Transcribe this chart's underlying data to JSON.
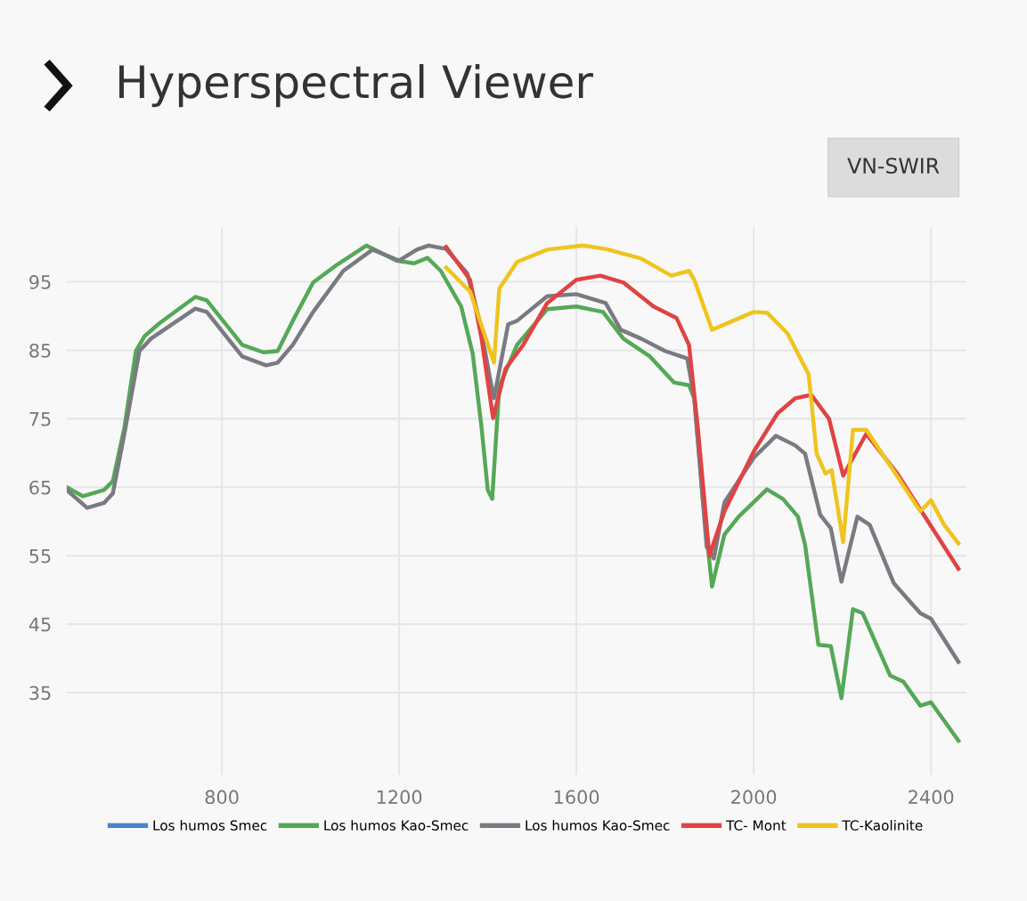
{
  "chart_data": {
    "type": "line",
    "title": "Hyperspectral Viewer",
    "annotations": [
      "VN-SWIR"
    ],
    "xlim": [
      450,
      2480
    ],
    "ylim": [
      23,
      103
    ],
    "xticks": [
      800,
      1200,
      1600,
      2000,
      2400
    ],
    "yticks": [
      35,
      45,
      55,
      65,
      75,
      85,
      95
    ],
    "grid": true,
    "legend": "bottom",
    "marker": "none",
    "line_style": "solid",
    "series": [
      {
        "name": "Los humos Smec",
        "color": "#4a86c5"
      },
      {
        "name": "Los humos Kao-Smec",
        "color": "#55a857",
        "x": [
          450,
          486,
          534,
          554,
          580,
          606,
          626,
          660,
          740,
          766,
          846,
          894,
          926,
          960,
          1006,
          1060,
          1126,
          1154,
          1194,
          1234,
          1264,
          1294,
          1340,
          1366,
          1386,
          1400,
          1410,
          1426,
          1466,
          1534,
          1600,
          1660,
          1706,
          1766,
          1820,
          1854,
          1866,
          1886,
          1906,
          1934,
          1966,
          2030,
          2066,
          2100,
          2116,
          2146,
          2174,
          2198,
          2224,
          2246,
          2308,
          2338,
          2376,
          2400,
          2462
        ],
        "values": [
          65.0,
          63.7,
          64.6,
          65.9,
          73.7,
          84.9,
          87.1,
          89.0,
          92.8,
          92.3,
          85.8,
          84.7,
          84.9,
          89.3,
          94.9,
          97.5,
          100.3,
          99.4,
          98.1,
          97.7,
          98.5,
          96.6,
          91.4,
          84.5,
          73.7,
          64.6,
          63.3,
          79.7,
          85.8,
          91.0,
          91.4,
          90.6,
          86.7,
          84.1,
          80.3,
          79.9,
          78.0,
          62.8,
          50.5,
          58.1,
          60.7,
          64.7,
          63.3,
          60.7,
          56.6,
          42.0,
          41.8,
          34.2,
          47.2,
          46.6,
          37.5,
          36.6,
          33.1,
          33.6,
          28.0
        ]
      },
      {
        "name": "Los humos Kao-Smec",
        "color": "#7a7a82",
        "x": [
          450,
          496,
          534,
          554,
          580,
          614,
          640,
          740,
          766,
          846,
          900,
          926,
          960,
          1006,
          1074,
          1140,
          1200,
          1240,
          1266,
          1306,
          1354,
          1380,
          1406,
          1414,
          1446,
          1466,
          1534,
          1600,
          1666,
          1700,
          1746,
          1800,
          1850,
          1866,
          1894,
          1910,
          1934,
          2000,
          2050,
          2094,
          2116,
          2150,
          2174,
          2198,
          2234,
          2262,
          2316,
          2376,
          2400,
          2462
        ],
        "values": [
          64.6,
          62.0,
          62.7,
          64.1,
          72.8,
          84.9,
          86.7,
          91.1,
          90.6,
          84.1,
          82.8,
          83.2,
          85.8,
          90.6,
          96.6,
          99.7,
          98.1,
          99.7,
          100.3,
          99.8,
          96.2,
          89.7,
          80.6,
          78.0,
          88.8,
          89.3,
          92.9,
          93.2,
          91.9,
          88.0,
          86.7,
          84.9,
          83.8,
          78.0,
          56.3,
          54.6,
          62.8,
          69.3,
          72.5,
          71.1,
          69.9,
          61.0,
          59.0,
          51.2,
          60.7,
          59.5,
          51.0,
          46.6,
          45.8,
          39.5
        ]
      },
      {
        "name": "TC- Mont",
        "color": "#e04343",
        "x": [
          1306,
          1360,
          1386,
          1412,
          1440,
          1480,
          1534,
          1600,
          1654,
          1706,
          1774,
          1826,
          1854,
          1874,
          1900,
          1934,
          2000,
          2054,
          2094,
          2130,
          2170,
          2202,
          2254,
          2324,
          2462
        ],
        "values": [
          100.1,
          95.3,
          86.7,
          75.1,
          82.3,
          85.8,
          91.9,
          95.3,
          95.9,
          94.9,
          91.4,
          89.7,
          85.8,
          73.7,
          55.0,
          61.5,
          70.2,
          75.8,
          78.0,
          78.5,
          75.0,
          66.7,
          72.8,
          67.0,
          53.1
        ]
      },
      {
        "name": "TC-Kaolinite",
        "color": "#f0c41e",
        "x": [
          1306,
          1360,
          1414,
          1426,
          1466,
          1534,
          1614,
          1666,
          1746,
          1814,
          1854,
          1866,
          1906,
          2000,
          2030,
          2076,
          2124,
          2142,
          2162,
          2176,
          2202,
          2224,
          2254,
          2330,
          2376,
          2400,
          2430,
          2462
        ],
        "values": [
          97.1,
          93.6,
          83.2,
          94.0,
          97.9,
          99.7,
          100.3,
          99.8,
          98.4,
          95.9,
          96.6,
          95.3,
          88.0,
          90.6,
          90.5,
          87.5,
          81.5,
          69.9,
          67.0,
          67.5,
          57.0,
          73.4,
          73.4,
          66.0,
          61.5,
          63.1,
          59.5,
          56.8
        ]
      }
    ]
  }
}
